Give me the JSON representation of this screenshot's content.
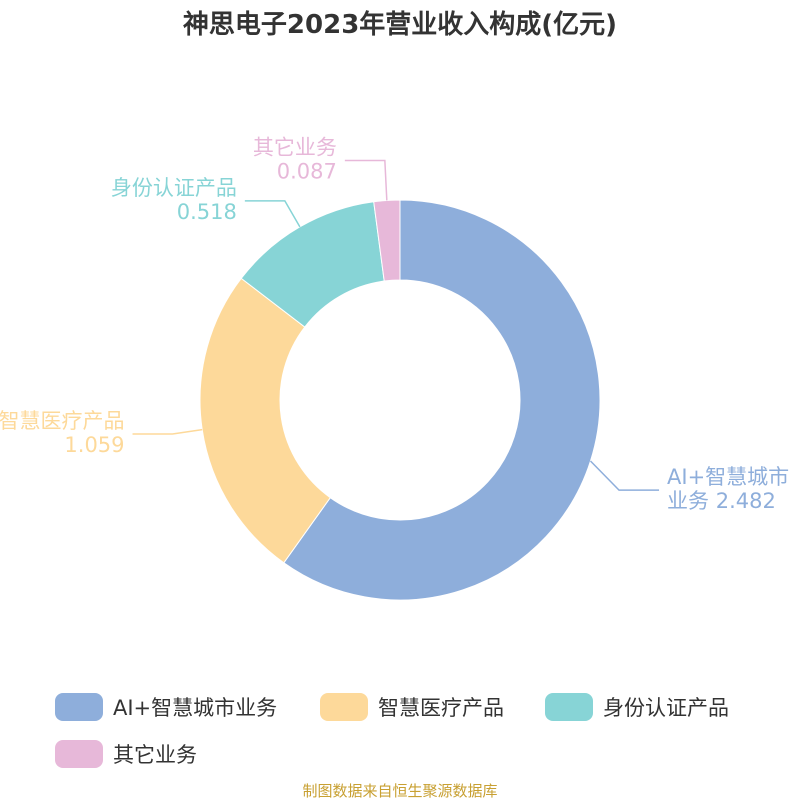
{
  "title": "神思电子2023年营业收入构成(亿元)",
  "source": "制图数据来自恒生聚源数据库",
  "chart_data": {
    "type": "pie",
    "variant": "donut",
    "title": "神思电子2023年营业收入构成(亿元)",
    "series": [
      {
        "name": "营业收入构成",
        "slices": [
          {
            "label": "AI+智慧城市业务",
            "label_lines": [
              "AI+智慧城市",
              "业务 2.482"
            ],
            "value": 2.482,
            "color": "#8eaedb"
          },
          {
            "label": "智慧医疗产品",
            "label_lines": [
              "智慧医疗产品",
              "1.059"
            ],
            "value": 1.059,
            "color": "#fdd99a"
          },
          {
            "label": "身份认证产品",
            "label_lines": [
              "身份认证产品",
              "0.518"
            ],
            "value": 0.518,
            "color": "#87d4d6"
          },
          {
            "label": "其它业务",
            "label_lines": [
              "其它业务",
              "0.087"
            ],
            "value": 0.087,
            "color": "#e7b8d9"
          }
        ]
      }
    ],
    "legend_position": "bottom"
  }
}
